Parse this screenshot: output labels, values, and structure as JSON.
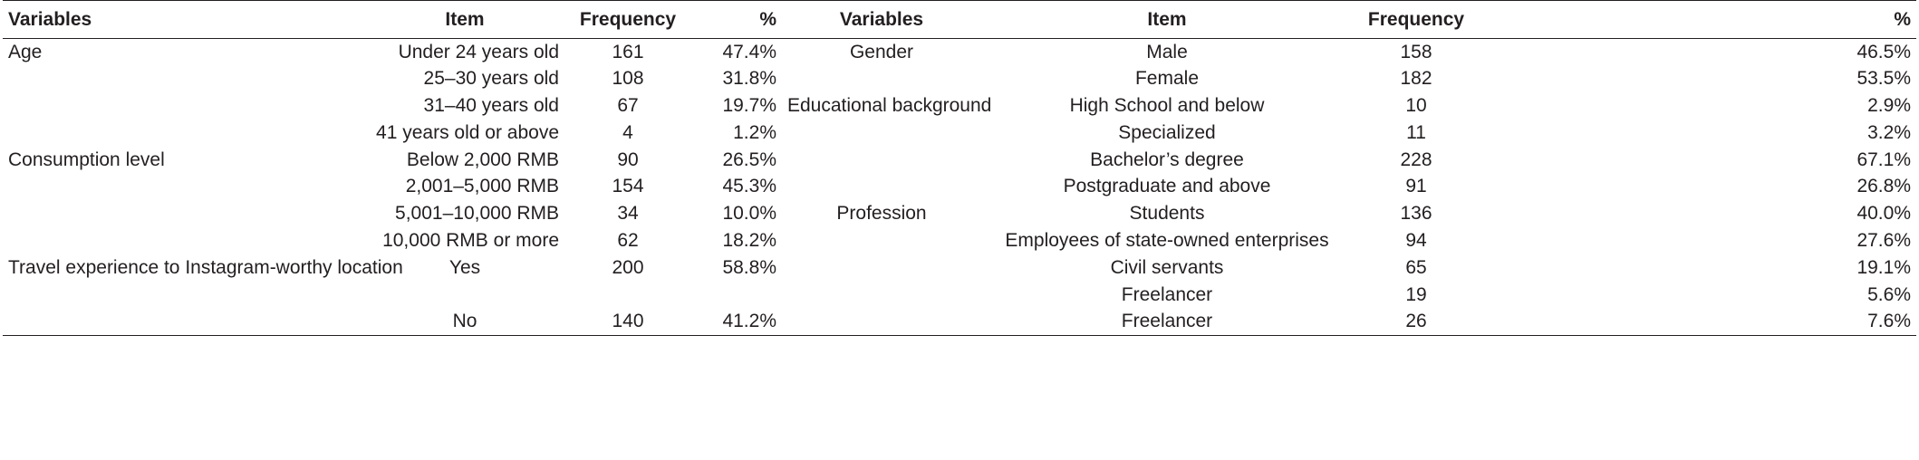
{
  "columns": [
    "Variables",
    "Item",
    "Frequency",
    "%",
    "Variables",
    "Item",
    "Frequency",
    "%"
  ],
  "rows": [
    [
      "Age",
      "Under 24 years old",
      "161",
      "47.4%",
      "Gender",
      "Male",
      "158",
      "46.5%"
    ],
    [
      "",
      "25–30 years old",
      "108",
      "31.8%",
      "",
      "Female",
      "182",
      "53.5%"
    ],
    [
      "",
      "31–40 years old",
      "67",
      "19.7%",
      "Educational background",
      "High School and below",
      "10",
      "2.9%"
    ],
    [
      "",
      "41 years old or above",
      "4",
      "1.2%",
      "",
      "Specialized",
      "11",
      "3.2%"
    ],
    [
      "Consumption level",
      "Below 2,000 RMB",
      "90",
      "26.5%",
      "",
      "Bachelor’s degree",
      "228",
      "67.1%"
    ],
    [
      "",
      "2,001–5,000 RMB",
      "154",
      "45.3%",
      "",
      "Postgraduate and above",
      "91",
      "26.8%"
    ],
    [
      "",
      "5,001–10,000 RMB",
      "34",
      "10.0%",
      "Profession",
      "Students",
      "136",
      "40.0%"
    ],
    [
      "",
      "10,000 RMB or more",
      "62",
      "18.2%",
      "",
      "Employees of state-owned enterprises",
      "94",
      "27.6%"
    ],
    [
      "Travel experience to Instagram-worthy location",
      "Yes",
      "200",
      "58.8%",
      "",
      "Civil servants",
      "65",
      "19.1%"
    ],
    [
      "",
      "",
      "",
      "",
      "",
      "Freelancer",
      "19",
      "5.6%"
    ],
    [
      "",
      "No",
      "140",
      "41.2%",
      "",
      "Freelancer",
      "26",
      "7.6%"
    ]
  ]
}
